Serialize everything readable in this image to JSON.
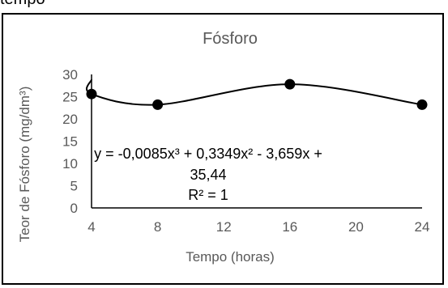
{
  "top_caption": "tempo",
  "chart_data": {
    "type": "scatter",
    "title": "Fósforo",
    "xlabel": "Tempo (horas)",
    "ylabel": "Teor de Fósforo (mg/dm³)",
    "xlim": [
      4,
      24
    ],
    "ylim": [
      0,
      30
    ],
    "x_ticks": [
      "4",
      "8",
      "12",
      "16",
      "20",
      "24"
    ],
    "y_ticks": [
      "0",
      "5",
      "10",
      "15",
      "20",
      "25",
      "30"
    ],
    "series": [
      {
        "x": [
          4,
          8,
          16,
          24
        ],
        "y": [
          25.6,
          23.2,
          27.8,
          23.2
        ]
      }
    ],
    "trendline": {
      "type": "polynomial-3",
      "coefficients": [
        -0.0085,
        0.3349,
        -3.659,
        35.44
      ],
      "equation_line1": "y = -0,0085x³ + 0,3349x² - 3,659x +",
      "equation_line2": "35,44",
      "r2": "R² = 1"
    },
    "grid": false,
    "colors": {
      "marker": "#000000",
      "line": "#000000",
      "text": "#595959"
    }
  }
}
